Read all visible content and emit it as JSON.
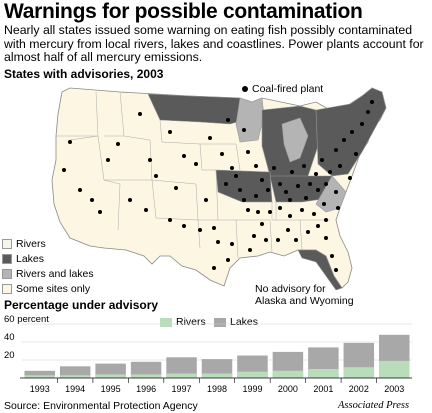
{
  "title": "Warnings for possible contamination",
  "intro": "Nearly all states issued some warning on eating fish possibly contaminated with mercury from local rivers, lakes and coastlines. Power plants account for almost half of all mercury emissions.",
  "map": {
    "heading": "States with advisories, 2003",
    "plant_legend": "Coal-fired plant",
    "legend": [
      {
        "label": "Rivers",
        "color": "#f6f6ea"
      },
      {
        "label": "Lakes",
        "color": "#5a5a5a"
      },
      {
        "label": "Rivers and lakes",
        "color": "#b4b4b4"
      },
      {
        "label": "Some sites only",
        "color": "#fcf6e3"
      }
    ],
    "note_line1": "No advisory for",
    "note_line2": "Alaska and Wyoming",
    "colors": {
      "land": "#fcf6e3",
      "lakes": "#5a5a5a",
      "rivers_lakes": "#b4b4b4",
      "border": "#999999",
      "water": "#ffffff"
    }
  },
  "chart_data": {
    "type": "bar",
    "title": "Percentage under advisory",
    "ylabel": "",
    "ytick_labels": [
      "60 percent",
      "40",
      "20"
    ],
    "ylim": [
      0,
      60
    ],
    "categories": [
      "1993",
      "1994",
      "1995",
      "1996",
      "1997",
      "1998",
      "1999",
      "2000",
      "2001",
      "2002",
      "2003"
    ],
    "series": [
      {
        "name": "Rivers",
        "color": "#b9ddbb",
        "values": [
          3,
          3,
          4,
          4,
          5,
          5,
          7,
          8,
          10,
          12,
          19
        ]
      },
      {
        "name": "Lakes",
        "color": "#a8a8a8",
        "values": [
          8,
          13,
          16,
          18,
          23,
          21,
          25,
          29,
          34,
          39,
          48
        ]
      }
    ],
    "stacking": "overlay",
    "grid": true,
    "legend_position": "top"
  },
  "source": "Source: Environmental Protection Agency",
  "credit": "Associated Press"
}
